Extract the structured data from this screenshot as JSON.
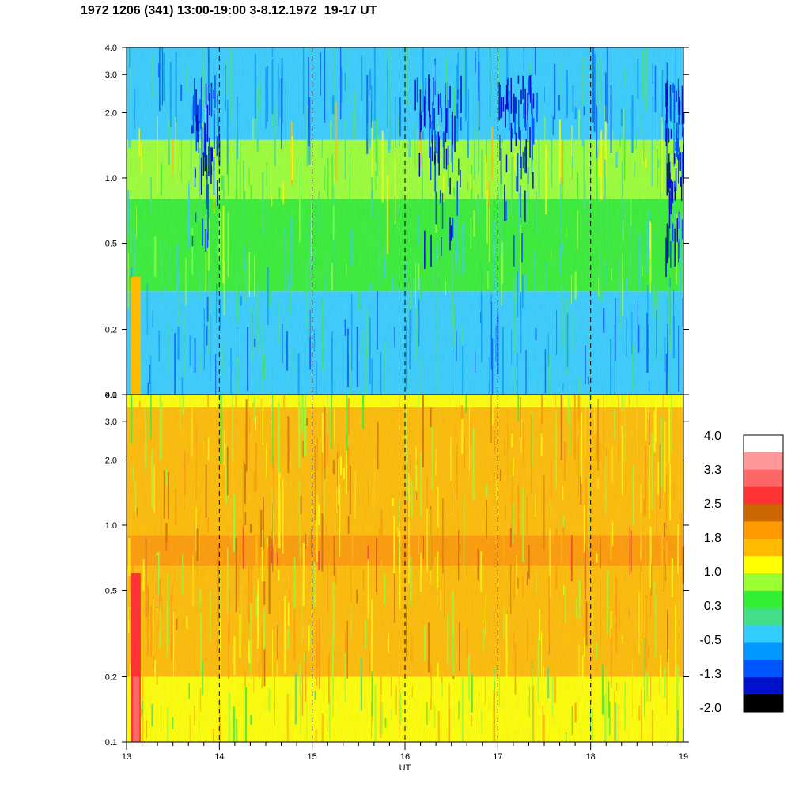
{
  "title": "1972 1206 (341) 13:00-19:00 3-8.12.1972  19-17 UT",
  "chart_data": [
    {
      "type": "heatmap",
      "panel": "upper",
      "x_range": [
        13,
        19
      ],
      "y_range": [
        0.1,
        4.0
      ],
      "y_scale": "log",
      "y_ticks": [
        "0.1",
        "0.2",
        "0.5",
        "1.0",
        "2.0",
        "3.0",
        "4.0"
      ],
      "dominant_levels": [
        {
          "y_range": [
            0.1,
            0.3
          ],
          "level": -0.5
        },
        {
          "y_range": [
            0.3,
            0.8
          ],
          "level": 0.3
        },
        {
          "y_range": [
            0.8,
            1.5
          ],
          "level": 0.65
        },
        {
          "y_range": [
            1.5,
            4.0
          ],
          "level": -0.5
        }
      ]
    },
    {
      "type": "heatmap",
      "panel": "lower",
      "x_range": [
        13,
        19
      ],
      "y_range": [
        0.1,
        4.0
      ],
      "y_scale": "log",
      "y_ticks": [
        "0.1",
        "0.2",
        "0.5",
        "1.0",
        "2.0",
        "3.0",
        "4.0"
      ],
      "dominant_levels": [
        {
          "y_range": [
            0.1,
            0.2
          ],
          "level": 1.0
        },
        {
          "y_range": [
            0.2,
            0.65
          ],
          "level": 1.5
        },
        {
          "y_range": [
            0.65,
            0.9
          ],
          "level": 1.9
        },
        {
          "y_range": [
            0.9,
            3.5
          ],
          "level": 1.5
        },
        {
          "y_range": [
            3.5,
            4.0
          ],
          "level": 1.0
        }
      ]
    }
  ],
  "x_axis": {
    "label": "UT",
    "ticks": [
      "13",
      "14",
      "15",
      "16",
      "17",
      "18",
      "19"
    ],
    "dashed_lines_at": [
      14,
      15,
      16,
      17,
      18
    ]
  },
  "colorbar": {
    "labels": [
      "4.0",
      "3.3",
      "2.5",
      "1.8",
      "1.0",
      "0.3",
      "-0.5",
      "-1.3",
      "-2.0"
    ],
    "colors": [
      "#ffffff",
      "#ff9999",
      "#ff6666",
      "#ff3333",
      "#cc6600",
      "#ff9900",
      "#ffbb00",
      "#ffff00",
      "#99ff33",
      "#33ee33",
      "#44dd88",
      "#33ccff",
      "#0099ff",
      "#0055ff",
      "#0011cc",
      "#000000"
    ]
  }
}
